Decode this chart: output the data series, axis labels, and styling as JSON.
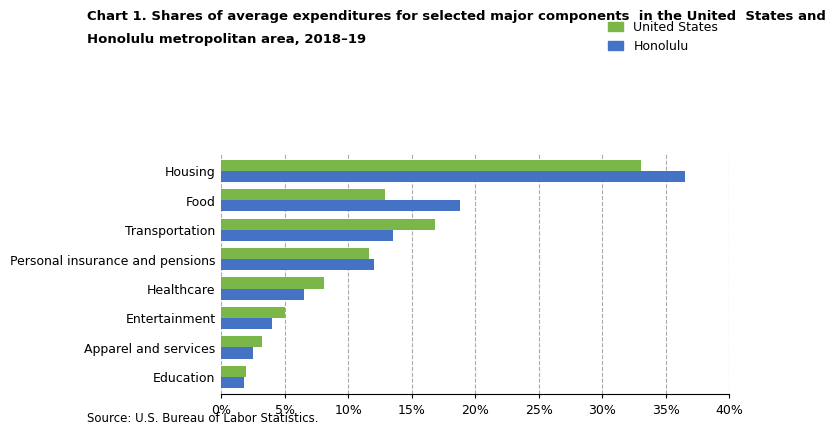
{
  "title_line1": "Chart 1. Shares of average expenditures for selected major components  in the United  States and",
  "title_line2": "Honolulu metropolitan area, 2018–19",
  "categories": [
    "Housing",
    "Food",
    "Transportation",
    "Personal insurance and pensions",
    "Healthcare",
    "Entertainment",
    "Apparel and services",
    "Education"
  ],
  "us_values": [
    33.0,
    12.9,
    16.8,
    11.6,
    8.1,
    5.0,
    3.2,
    2.0
  ],
  "honolulu_values": [
    36.5,
    18.8,
    13.5,
    12.0,
    6.5,
    4.0,
    2.5,
    1.8
  ],
  "us_color": "#7ab648",
  "honolulu_color": "#4472c4",
  "us_label": "United States",
  "honolulu_label": "Honolulu",
  "xlim": [
    0,
    40
  ],
  "xticks": [
    0,
    5,
    10,
    15,
    20,
    25,
    30,
    35,
    40
  ],
  "xticklabels": [
    "0%",
    "5%",
    "10%",
    "15%",
    "20%",
    "25%",
    "30%",
    "35%",
    "40%"
  ],
  "source": "Source: U.S. Bureau of Labor Statistics.",
  "background_color": "#ffffff",
  "bar_height": 0.38,
  "title_fontsize": 9.5,
  "tick_fontsize": 9,
  "legend_fontsize": 9,
  "source_fontsize": 8.5
}
